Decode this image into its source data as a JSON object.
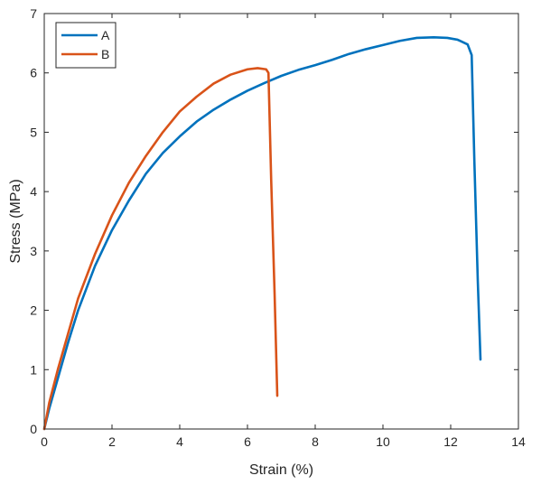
{
  "chart_data": {
    "type": "line",
    "title": "",
    "xlabel": "Strain (%)",
    "ylabel": "Stress (MPa)",
    "xlim": [
      0,
      14
    ],
    "ylim": [
      0,
      7
    ],
    "xticks": [
      "0",
      "2",
      "4",
      "6",
      "8",
      "10",
      "12",
      "14"
    ],
    "yticks": [
      "0",
      "1",
      "2",
      "3",
      "4",
      "5",
      "6",
      "7"
    ],
    "grid": false,
    "legend": "top-left",
    "series": [
      {
        "name": "A",
        "color": "#0072BD",
        "x": [
          0,
          0.15,
          0.4,
          0.7,
          1.0,
          1.5,
          2.0,
          2.5,
          3.0,
          3.5,
          4.0,
          4.5,
          5.0,
          5.5,
          6.0,
          6.5,
          7.0,
          7.5,
          8.0,
          8.5,
          9.0,
          9.5,
          10.0,
          10.5,
          11.0,
          11.5,
          11.9,
          12.2,
          12.5,
          12.62,
          12.7,
          12.8,
          12.88
        ],
        "y": [
          0,
          0.35,
          0.85,
          1.45,
          2.0,
          2.75,
          3.35,
          3.85,
          4.3,
          4.65,
          4.93,
          5.18,
          5.38,
          5.55,
          5.7,
          5.83,
          5.95,
          6.05,
          6.13,
          6.22,
          6.32,
          6.4,
          6.47,
          6.54,
          6.59,
          6.6,
          6.59,
          6.56,
          6.48,
          6.3,
          4.5,
          2.5,
          1.17
        ]
      },
      {
        "name": "B",
        "color": "#D95319",
        "x": [
          0,
          0.15,
          0.4,
          0.7,
          1.0,
          1.5,
          2.0,
          2.5,
          3.0,
          3.5,
          4.0,
          4.5,
          5.0,
          5.5,
          6.0,
          6.3,
          6.55,
          6.62,
          6.7,
          6.8,
          6.88
        ],
        "y": [
          0,
          0.45,
          1.0,
          1.6,
          2.2,
          2.95,
          3.6,
          4.15,
          4.6,
          5.0,
          5.35,
          5.6,
          5.82,
          5.97,
          6.06,
          6.08,
          6.06,
          6.0,
          4.2,
          2.3,
          0.56
        ]
      }
    ]
  }
}
